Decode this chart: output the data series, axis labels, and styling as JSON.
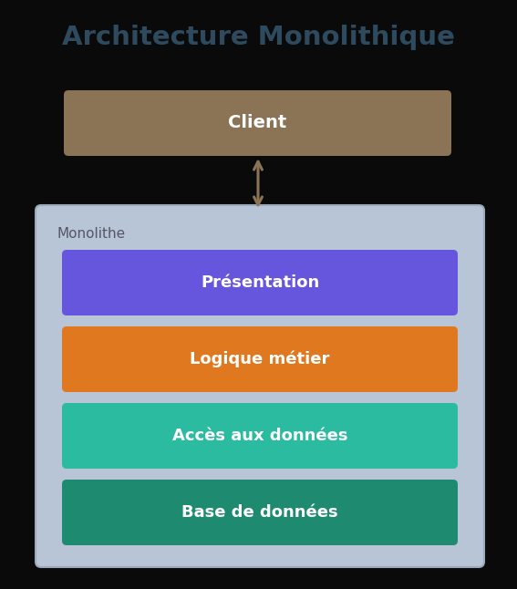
{
  "title": "Architecture Monolithique",
  "title_color": "#2d4a5e",
  "background_color": "#0a0a0a",
  "client_label": "Client",
  "client_color": "#8b7355",
  "client_text_color": "#ffffff",
  "monolithe_label": "Monolithe",
  "monolithe_bg": "#b8c5d6",
  "monolithe_border": "#9aaabb",
  "arrow_color": "#8b7355",
  "layers": [
    {
      "label": "Présentation",
      "color": "#6655dd"
    },
    {
      "label": "Logique métier",
      "color": "#e07820"
    },
    {
      "label": "Accès aux données",
      "color": "#2abba0"
    },
    {
      "label": "Base de données",
      "color": "#1e8a70"
    }
  ],
  "layer_text_color": "#ffffff"
}
